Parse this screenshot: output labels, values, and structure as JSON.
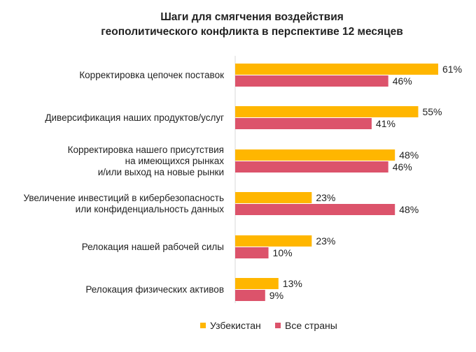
{
  "chart_data": {
    "type": "bar",
    "orientation": "horizontal",
    "title": [
      "Шаги для смягчения воздействия",
      "геополитического конфликта в перспективе 12 месяцев"
    ],
    "categories": [
      [
        "Корректировка цепочек поставок"
      ],
      [
        "Диверсификация наших продуктов/услуг"
      ],
      [
        "Корректировка нашего присутствия",
        "на имеющихся рынках",
        "и/или выход на новые рынки"
      ],
      [
        "Увеличение инвестиций в кибербезопасность",
        "или конфиденциальность данных"
      ],
      [
        "Релокация нашей рабочей силы"
      ],
      [
        "Релокация физических активов"
      ]
    ],
    "series": [
      {
        "name": "Узбекистан",
        "color": "#FFB600",
        "values": [
          61,
          55,
          48,
          23,
          23,
          13
        ]
      },
      {
        "name": "Все страны",
        "color": "#DC536B",
        "values": [
          46,
          41,
          46,
          48,
          10,
          9
        ]
      }
    ],
    "value_suffix": "%",
    "xlim": [
      0,
      65
    ],
    "grid": false,
    "legend_position": "bottom"
  }
}
